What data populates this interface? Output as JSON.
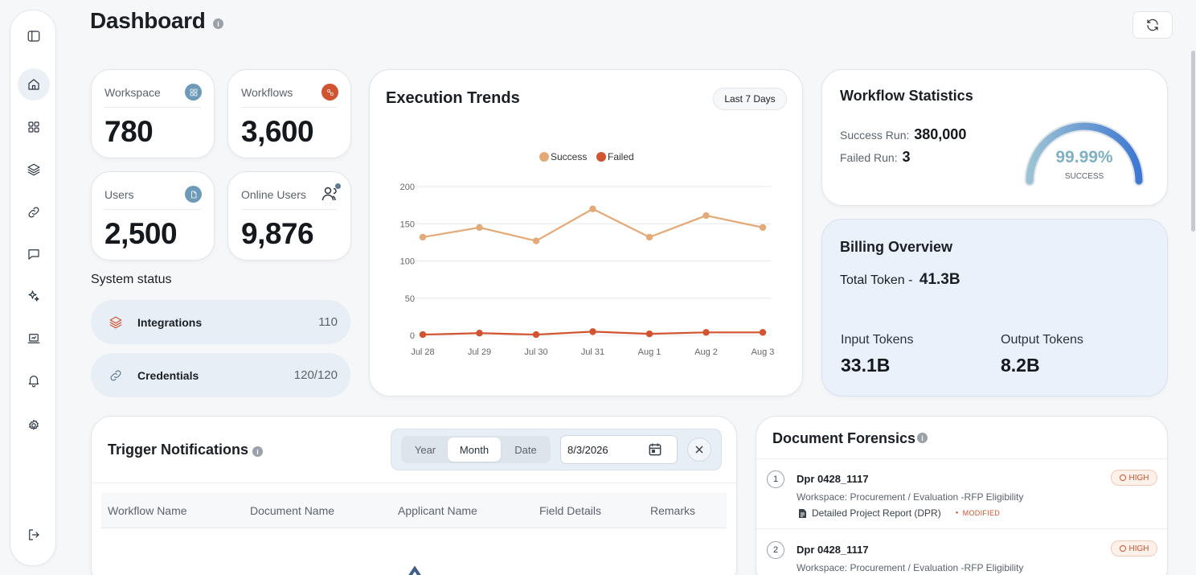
{
  "header": {
    "title": "Dashboard",
    "info": "i"
  },
  "sidebar": {
    "items": [
      {
        "name": "sidebar-toggle"
      },
      {
        "name": "home",
        "active": true
      },
      {
        "name": "apps"
      },
      {
        "name": "layers"
      },
      {
        "name": "links"
      },
      {
        "name": "chat"
      },
      {
        "name": "ai-sparkles"
      },
      {
        "name": "monitor"
      },
      {
        "name": "notifications"
      },
      {
        "name": "settings"
      },
      {
        "name": "logout"
      }
    ]
  },
  "stats": {
    "workspace": {
      "label": "Workspace",
      "value": "780",
      "icon": "grid-icon",
      "color": "#6d9ab8"
    },
    "workflows": {
      "label": "Workflows",
      "value": "3,600",
      "icon": "workflow-icon",
      "color": "#d2532f"
    },
    "users": {
      "label": "Users",
      "value": "2,500",
      "icon": "document-icon",
      "color": "#6d9ab8"
    },
    "online_users": {
      "label": "Online Users",
      "value": "9,876",
      "icon": "users-icon",
      "color": "#2c3440"
    }
  },
  "system_status": {
    "title": "System status",
    "rows": [
      {
        "name": "Integrations",
        "count": "110",
        "icon": "layers-icon"
      },
      {
        "name": "Credentials",
        "count": "120/120",
        "icon": "link-icon"
      }
    ]
  },
  "execution_trends": {
    "title": "Execution Trends",
    "range_label": "Last 7 Days"
  },
  "chart_data": {
    "type": "line",
    "title": "Execution Trends",
    "categories": [
      "Jul 28",
      "Jul 29",
      "Jul 30",
      "Jul 31",
      "Aug 1",
      "Aug 2",
      "Aug 3"
    ],
    "series": [
      {
        "name": "Success",
        "color": "#e3aa78",
        "values": [
          132,
          145,
          127,
          170,
          132,
          161,
          145
        ]
      },
      {
        "name": "Failed",
        "color": "#d2532f",
        "values": [
          1,
          3,
          1,
          5,
          2,
          4,
          4
        ]
      }
    ],
    "yticks": [
      0,
      50,
      100,
      150,
      200
    ],
    "ylim": [
      0,
      200
    ],
    "grid": true,
    "legend": "top"
  },
  "workflow_statistics": {
    "title": "Workflow Statistics",
    "success_label": "Success Run:",
    "success_value": "380,000",
    "failed_label": "Failed Run:",
    "failed_value": "3",
    "gauge_value": "99.99%",
    "gauge_label": "SUCCESS",
    "gauge_fraction": 0.9999
  },
  "billing": {
    "title": "Billing Overview",
    "total_label": "Total Token -",
    "total_value": "41.3B",
    "input_label": "Input Tokens",
    "input_value": "33.1B",
    "output_label": "Output Tokens",
    "output_value": "8.2B"
  },
  "trigger_notifications": {
    "title": "Trigger Notifications",
    "segments": [
      "Year",
      "Month",
      "Date"
    ],
    "active_segment": "Month",
    "date_value": "8/3/2026",
    "columns": [
      "Workflow Name",
      "Document Name",
      "Applicant Name",
      "Field Details",
      "Remarks"
    ]
  },
  "document_forensics": {
    "title": "Document Forensics",
    "items": [
      {
        "index": "1",
        "name": "Dpr 0428_1117",
        "workspace": "Workspace: Procurement / Evaluation -RFP Eligibility",
        "document": "Detailed Project Report (DPR)",
        "status": "MODIFIED",
        "severity": "HIGH"
      },
      {
        "index": "2",
        "name": "Dpr 0428_1117",
        "workspace": "Workspace: Procurement / Evaluation -RFP Eligibility",
        "severity": "HIGH"
      }
    ]
  }
}
